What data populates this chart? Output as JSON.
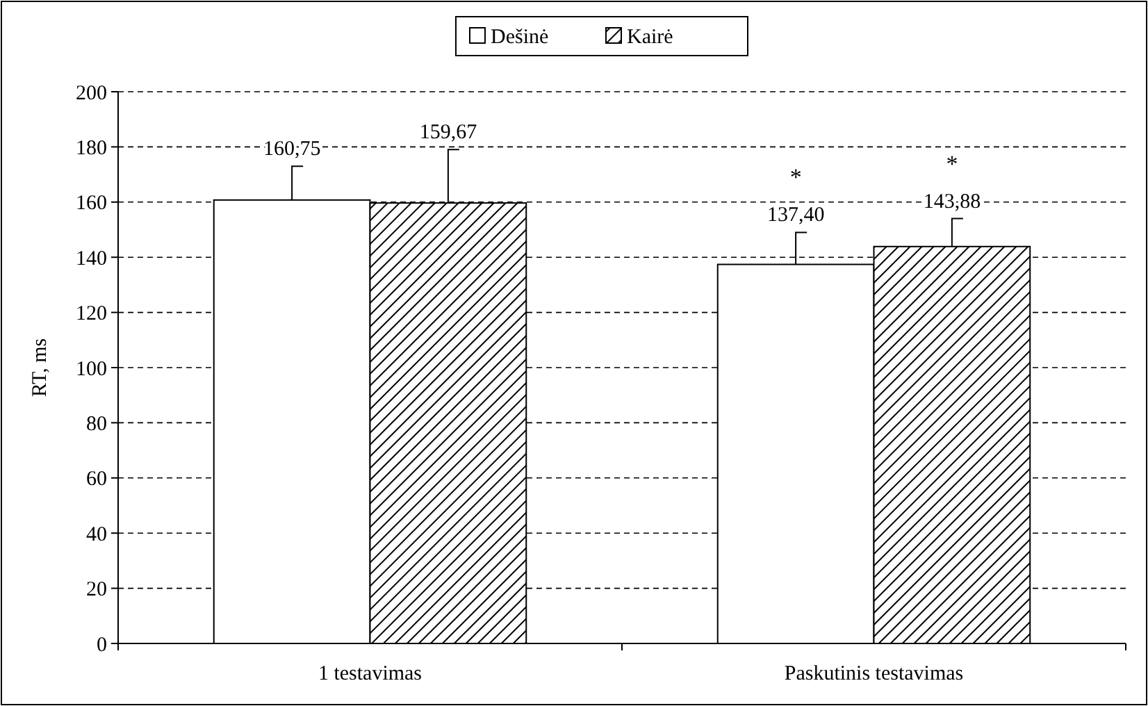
{
  "chart_data": {
    "type": "bar",
    "ylabel": "RT, ms",
    "categories": [
      "1 testavimas",
      "Paskutinis testavimas"
    ],
    "series": [
      {
        "name": "Dešinė",
        "color": "#ffffff",
        "values": [
          160.75,
          137.4
        ],
        "errors": [
          [
            160.75,
            173
          ],
          [
            137.4,
            149
          ]
        ],
        "value_labels": [
          "160,75",
          "137,40"
        ]
      },
      {
        "name": "Kairė",
        "color": "#000000",
        "values": [
          159.67,
          143.88
        ],
        "errors": [
          [
            159.67,
            179
          ],
          [
            143.88,
            154
          ]
        ],
        "value_labels": [
          "159,67",
          "143,88"
        ]
      }
    ],
    "ylim": [
      0,
      200
    ],
    "yticks": [
      0,
      20,
      40,
      60,
      80,
      100,
      120,
      140,
      160,
      180,
      200
    ],
    "grid": "y",
    "legend": "top",
    "annotations": [
      "*",
      "*"
    ]
  }
}
